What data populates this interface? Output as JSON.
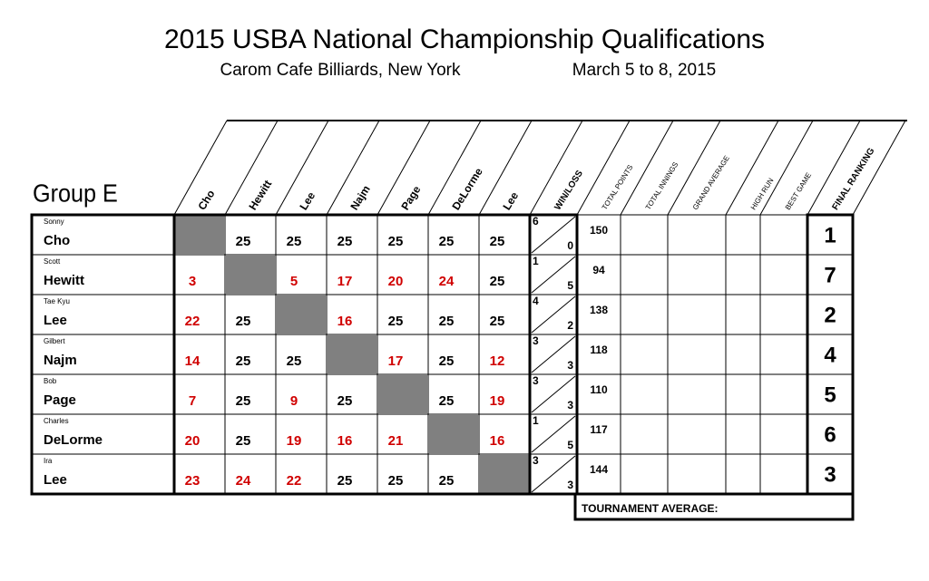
{
  "header": {
    "title": "2015 USBA National Championship Qualifications",
    "venue": "Carom Cafe Billiards, New York",
    "dates": "March 5 to 8, 2015"
  },
  "group": "Group E",
  "columns": {
    "opponents": [
      "Cho",
      "Hewitt",
      "Lee",
      "Najm",
      "Page",
      "DeLorme",
      "Lee"
    ],
    "stats": [
      "WIN/LOSS",
      "TOTAL POINTS",
      "TOTAL INNINGS",
      "GRAND AVERAGE",
      "HIGH RUN",
      "BEST GAME",
      "FINAL RANKING"
    ]
  },
  "colors": {
    "loss": "#d00000",
    "win": "#000000",
    "self": "#808080"
  },
  "players": [
    {
      "first": "Sonny",
      "last": "Cho",
      "scores": [
        null,
        25,
        25,
        25,
        25,
        25,
        25
      ],
      "wins": 6,
      "losses": 0,
      "total_points": 150,
      "rank": 1
    },
    {
      "first": "Scott",
      "last": "Hewitt",
      "scores": [
        3,
        null,
        5,
        17,
        20,
        24,
        25
      ],
      "wins": 1,
      "losses": 5,
      "total_points": 94,
      "rank": 7
    },
    {
      "first": "Tae Kyu",
      "last": "Lee",
      "scores": [
        22,
        25,
        null,
        16,
        25,
        25,
        25
      ],
      "wins": 4,
      "losses": 2,
      "total_points": 138,
      "rank": 2
    },
    {
      "first": "Gilbert",
      "last": "Najm",
      "scores": [
        14,
        25,
        25,
        null,
        17,
        25,
        12
      ],
      "wins": 3,
      "losses": 3,
      "total_points": 118,
      "rank": 4
    },
    {
      "first": "Bob",
      "last": "Page",
      "scores": [
        7,
        25,
        9,
        25,
        null,
        25,
        19
      ],
      "wins": 3,
      "losses": 3,
      "total_points": 110,
      "rank": 5
    },
    {
      "first": "Charles",
      "last": "DeLorme",
      "scores": [
        20,
        25,
        19,
        16,
        21,
        null,
        16
      ],
      "wins": 1,
      "losses": 5,
      "total_points": 117,
      "rank": 6
    },
    {
      "first": "Ira",
      "last": "Lee",
      "scores": [
        23,
        24,
        22,
        25,
        25,
        25,
        null
      ],
      "wins": 3,
      "losses": 3,
      "total_points": 144,
      "rank": 3
    }
  ],
  "tournament_average_label": "TOURNAMENT AVERAGE:"
}
